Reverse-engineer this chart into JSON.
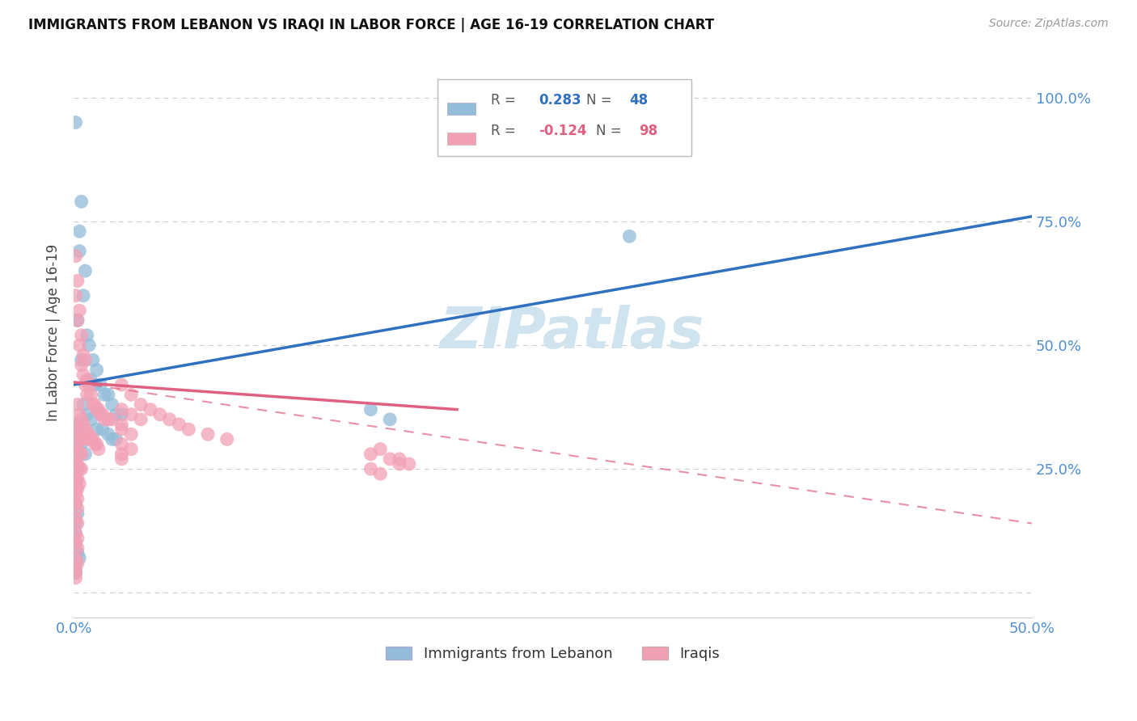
{
  "title": "IMMIGRANTS FROM LEBANON VS IRAQI IN LABOR FORCE | AGE 16-19 CORRELATION CHART",
  "source": "Source: ZipAtlas.com",
  "ylabel": "In Labor Force | Age 16-19",
  "xlim": [
    0.0,
    0.5
  ],
  "ylim": [
    -0.05,
    1.1
  ],
  "yticks": [
    0.0,
    0.25,
    0.5,
    0.75,
    1.0
  ],
  "ytick_labels": [
    "",
    "25.0%",
    "50.0%",
    "75.0%",
    "100.0%"
  ],
  "xticks": [
    0.0,
    0.1,
    0.2,
    0.3,
    0.4,
    0.5
  ],
  "xtick_labels": [
    "0.0%",
    "",
    "",
    "",
    "",
    "50.0%"
  ],
  "legend_label1": "Immigrants from Lebanon",
  "legend_label2": "Iraqis",
  "R1": 0.283,
  "N1": 48,
  "R2": -0.124,
  "N2": 98,
  "scatter_lebanon": [
    [
      0.001,
      0.95
    ],
    [
      0.004,
      0.79
    ],
    [
      0.003,
      0.69
    ],
    [
      0.003,
      0.73
    ],
    [
      0.006,
      0.65
    ],
    [
      0.005,
      0.6
    ],
    [
      0.002,
      0.55
    ],
    [
      0.007,
      0.52
    ],
    [
      0.008,
      0.5
    ],
    [
      0.004,
      0.47
    ],
    [
      0.01,
      0.47
    ],
    [
      0.012,
      0.45
    ],
    [
      0.009,
      0.43
    ],
    [
      0.014,
      0.42
    ],
    [
      0.011,
      0.42
    ],
    [
      0.018,
      0.4
    ],
    [
      0.016,
      0.4
    ],
    [
      0.02,
      0.38
    ],
    [
      0.022,
      0.36
    ],
    [
      0.025,
      0.36
    ],
    [
      0.005,
      0.38
    ],
    [
      0.007,
      0.36
    ],
    [
      0.009,
      0.35
    ],
    [
      0.012,
      0.33
    ],
    [
      0.015,
      0.33
    ],
    [
      0.018,
      0.32
    ],
    [
      0.02,
      0.31
    ],
    [
      0.022,
      0.31
    ],
    [
      0.002,
      0.34
    ],
    [
      0.003,
      0.32
    ],
    [
      0.004,
      0.3
    ],
    [
      0.006,
      0.28
    ],
    [
      0.001,
      0.3
    ],
    [
      0.001,
      0.27
    ],
    [
      0.002,
      0.25
    ],
    [
      0.001,
      0.22
    ],
    [
      0.001,
      0.18
    ],
    [
      0.002,
      0.16
    ],
    [
      0.001,
      0.14
    ],
    [
      0.001,
      0.12
    ],
    [
      0.001,
      0.1
    ],
    [
      0.002,
      0.08
    ],
    [
      0.003,
      0.07
    ],
    [
      0.001,
      0.06
    ],
    [
      0.001,
      0.04
    ],
    [
      0.29,
      0.72
    ],
    [
      0.155,
      0.37
    ],
    [
      0.165,
      0.35
    ]
  ],
  "scatter_iraqi": [
    [
      0.001,
      0.68
    ],
    [
      0.002,
      0.63
    ],
    [
      0.001,
      0.6
    ],
    [
      0.003,
      0.57
    ],
    [
      0.002,
      0.55
    ],
    [
      0.004,
      0.52
    ],
    [
      0.003,
      0.5
    ],
    [
      0.005,
      0.48
    ],
    [
      0.004,
      0.46
    ],
    [
      0.006,
      0.47
    ],
    [
      0.005,
      0.44
    ],
    [
      0.007,
      0.43
    ],
    [
      0.006,
      0.42
    ],
    [
      0.008,
      0.42
    ],
    [
      0.007,
      0.4
    ],
    [
      0.009,
      0.4
    ],
    [
      0.01,
      0.38
    ],
    [
      0.011,
      0.38
    ],
    [
      0.012,
      0.37
    ],
    [
      0.013,
      0.37
    ],
    [
      0.014,
      0.36
    ],
    [
      0.015,
      0.36
    ],
    [
      0.016,
      0.35
    ],
    [
      0.018,
      0.35
    ],
    [
      0.02,
      0.35
    ],
    [
      0.002,
      0.38
    ],
    [
      0.003,
      0.36
    ],
    [
      0.004,
      0.35
    ],
    [
      0.005,
      0.34
    ],
    [
      0.006,
      0.33
    ],
    [
      0.007,
      0.32
    ],
    [
      0.008,
      0.32
    ],
    [
      0.009,
      0.31
    ],
    [
      0.01,
      0.31
    ],
    [
      0.011,
      0.3
    ],
    [
      0.012,
      0.3
    ],
    [
      0.013,
      0.29
    ],
    [
      0.001,
      0.34
    ],
    [
      0.002,
      0.33
    ],
    [
      0.003,
      0.32
    ],
    [
      0.004,
      0.31
    ],
    [
      0.005,
      0.31
    ],
    [
      0.001,
      0.3
    ],
    [
      0.002,
      0.29
    ],
    [
      0.003,
      0.28
    ],
    [
      0.004,
      0.28
    ],
    [
      0.001,
      0.26
    ],
    [
      0.002,
      0.26
    ],
    [
      0.003,
      0.25
    ],
    [
      0.004,
      0.25
    ],
    [
      0.001,
      0.23
    ],
    [
      0.002,
      0.23
    ],
    [
      0.003,
      0.22
    ],
    [
      0.001,
      0.21
    ],
    [
      0.002,
      0.21
    ],
    [
      0.001,
      0.2
    ],
    [
      0.002,
      0.19
    ],
    [
      0.001,
      0.18
    ],
    [
      0.002,
      0.17
    ],
    [
      0.001,
      0.15
    ],
    [
      0.002,
      0.14
    ],
    [
      0.001,
      0.12
    ],
    [
      0.002,
      0.11
    ],
    [
      0.001,
      0.1
    ],
    [
      0.002,
      0.09
    ],
    [
      0.001,
      0.07
    ],
    [
      0.002,
      0.06
    ],
    [
      0.001,
      0.05
    ],
    [
      0.001,
      0.04
    ],
    [
      0.001,
      0.03
    ],
    [
      0.025,
      0.42
    ],
    [
      0.03,
      0.4
    ],
    [
      0.035,
      0.38
    ],
    [
      0.04,
      0.37
    ],
    [
      0.045,
      0.36
    ],
    [
      0.05,
      0.35
    ],
    [
      0.055,
      0.34
    ],
    [
      0.06,
      0.33
    ],
    [
      0.07,
      0.32
    ],
    [
      0.08,
      0.31
    ],
    [
      0.025,
      0.37
    ],
    [
      0.03,
      0.36
    ],
    [
      0.035,
      0.35
    ],
    [
      0.025,
      0.34
    ],
    [
      0.025,
      0.33
    ],
    [
      0.03,
      0.32
    ],
    [
      0.025,
      0.3
    ],
    [
      0.03,
      0.29
    ],
    [
      0.025,
      0.28
    ],
    [
      0.025,
      0.27
    ],
    [
      0.17,
      0.27
    ],
    [
      0.175,
      0.26
    ],
    [
      0.155,
      0.28
    ],
    [
      0.16,
      0.29
    ],
    [
      0.165,
      0.27
    ],
    [
      0.17,
      0.26
    ],
    [
      0.155,
      0.25
    ],
    [
      0.16,
      0.24
    ]
  ],
  "color_lebanon": "#92bcd9",
  "color_iraqi": "#f2a0b5",
  "line_color_lebanon": "#3070c0",
  "line_color_iraqi": "#e06080",
  "watermark_color": "#d0e4f0",
  "background_color": "#ffffff",
  "grid_color": "#cccccc"
}
